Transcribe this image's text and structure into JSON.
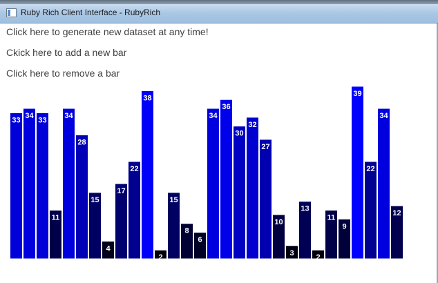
{
  "window": {
    "title": "Ruby Rich Client Interface - RubyRich"
  },
  "actions": {
    "generate_label": "Click here to generate new dataset at any time!",
    "add_label": "Ckick here to add a new bar",
    "remove_label": "Click here to remove a bar"
  },
  "chart_data": {
    "type": "bar",
    "values": [
      33,
      34,
      33,
      11,
      34,
      28,
      15,
      4,
      17,
      22,
      38,
      2,
      15,
      8,
      6,
      34,
      36,
      30,
      32,
      27,
      10,
      3,
      13,
      2,
      11,
      9,
      39,
      22,
      34,
      12
    ],
    "data_labels": "inside-top",
    "ylim": [
      0,
      39
    ],
    "color_scale": {
      "low": "#000000",
      "high": "#0000ff"
    },
    "label_color": "#ffffff"
  }
}
